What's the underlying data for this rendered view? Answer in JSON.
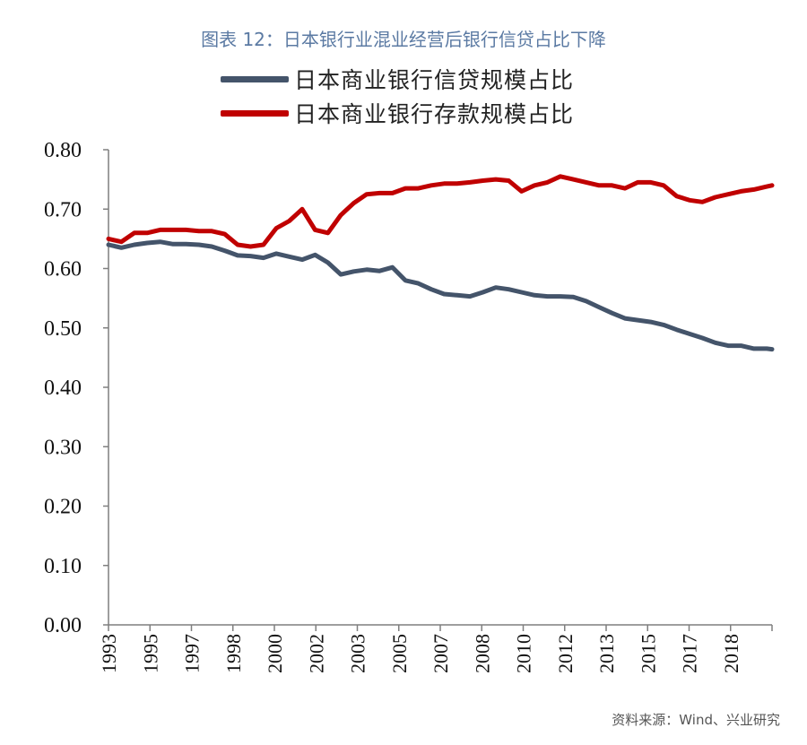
{
  "title": "图表 12：日本银行业混业经营后银行信贷占比下降",
  "source": "资料来源：Wind、兴业研究",
  "colors": {
    "credit": "#44546a",
    "deposit": "#c00000",
    "title": "#5b7aa3"
  },
  "chart_data": {
    "type": "line",
    "ylim": [
      0,
      0.8
    ],
    "yticks": [
      "0.80",
      "0.70",
      "0.60",
      "0.50",
      "0.40",
      "0.30",
      "0.20",
      "0.10",
      "0.00"
    ],
    "xticks": [
      "1993",
      "1995",
      "1997",
      "1998",
      "2000",
      "2002",
      "2003",
      "2005",
      "2007",
      "2008",
      "2010",
      "2012",
      "2013",
      "2015",
      "2017",
      "2018"
    ],
    "xrange": [
      1993.0,
      2018.7
    ],
    "grid": false,
    "legend": "top",
    "series": [
      {
        "name": "日本商业银行信贷规模占比",
        "color": "#44546a",
        "points": [
          [
            1993.0,
            0.64
          ],
          [
            1993.5,
            0.635
          ],
          [
            1994.0,
            0.64
          ],
          [
            1994.5,
            0.643
          ],
          [
            1995.0,
            0.645
          ],
          [
            1995.5,
            0.641
          ],
          [
            1996.0,
            0.641
          ],
          [
            1996.5,
            0.64
          ],
          [
            1997.0,
            0.637
          ],
          [
            1997.5,
            0.63
          ],
          [
            1998.0,
            0.622
          ],
          [
            1998.5,
            0.621
          ],
          [
            1999.0,
            0.618
          ],
          [
            1999.5,
            0.625
          ],
          [
            2000.0,
            0.62
          ],
          [
            2000.5,
            0.615
          ],
          [
            2001.0,
            0.623
          ],
          [
            2001.5,
            0.61
          ],
          [
            2002.0,
            0.59
          ],
          [
            2002.5,
            0.595
          ],
          [
            2003.0,
            0.598
          ],
          [
            2003.5,
            0.596
          ],
          [
            2004.0,
            0.602
          ],
          [
            2004.5,
            0.58
          ],
          [
            2005.0,
            0.575
          ],
          [
            2005.5,
            0.565
          ],
          [
            2006.0,
            0.557
          ],
          [
            2006.5,
            0.555
          ],
          [
            2007.0,
            0.553
          ],
          [
            2007.5,
            0.56
          ],
          [
            2008.0,
            0.568
          ],
          [
            2008.5,
            0.565
          ],
          [
            2009.0,
            0.56
          ],
          [
            2009.5,
            0.555
          ],
          [
            2010.0,
            0.553
          ],
          [
            2010.5,
            0.553
          ],
          [
            2011.0,
            0.552
          ],
          [
            2011.5,
            0.545
          ],
          [
            2012.0,
            0.535
          ],
          [
            2012.5,
            0.525
          ],
          [
            2013.0,
            0.516
          ],
          [
            2013.5,
            0.513
          ],
          [
            2014.0,
            0.51
          ],
          [
            2014.5,
            0.505
          ],
          [
            2015.0,
            0.497
          ],
          [
            2015.5,
            0.49
          ],
          [
            2016.0,
            0.483
          ],
          [
            2016.5,
            0.475
          ],
          [
            2017.0,
            0.47
          ],
          [
            2017.5,
            0.47
          ],
          [
            2018.0,
            0.465
          ],
          [
            2018.5,
            0.465
          ],
          [
            2018.7,
            0.464
          ]
        ]
      },
      {
        "name": "日本商业银行存款规模占比",
        "color": "#c00000",
        "points": [
          [
            1993.0,
            0.65
          ],
          [
            1993.5,
            0.645
          ],
          [
            1994.0,
            0.66
          ],
          [
            1994.5,
            0.66
          ],
          [
            1995.0,
            0.665
          ],
          [
            1995.5,
            0.665
          ],
          [
            1996.0,
            0.665
          ],
          [
            1996.5,
            0.663
          ],
          [
            1997.0,
            0.663
          ],
          [
            1997.5,
            0.658
          ],
          [
            1998.0,
            0.64
          ],
          [
            1998.5,
            0.637
          ],
          [
            1999.0,
            0.64
          ],
          [
            1999.5,
            0.668
          ],
          [
            2000.0,
            0.68
          ],
          [
            2000.5,
            0.7
          ],
          [
            2001.0,
            0.665
          ],
          [
            2001.5,
            0.66
          ],
          [
            2002.0,
            0.69
          ],
          [
            2002.5,
            0.71
          ],
          [
            2003.0,
            0.725
          ],
          [
            2003.5,
            0.727
          ],
          [
            2004.0,
            0.727
          ],
          [
            2004.5,
            0.735
          ],
          [
            2005.0,
            0.735
          ],
          [
            2005.5,
            0.74
          ],
          [
            2006.0,
            0.743
          ],
          [
            2006.5,
            0.743
          ],
          [
            2007.0,
            0.745
          ],
          [
            2007.5,
            0.748
          ],
          [
            2008.0,
            0.75
          ],
          [
            2008.5,
            0.748
          ],
          [
            2009.0,
            0.73
          ],
          [
            2009.5,
            0.74
          ],
          [
            2010.0,
            0.745
          ],
          [
            2010.5,
            0.755
          ],
          [
            2011.0,
            0.75
          ],
          [
            2011.5,
            0.745
          ],
          [
            2012.0,
            0.74
          ],
          [
            2012.5,
            0.74
          ],
          [
            2013.0,
            0.735
          ],
          [
            2013.5,
            0.745
          ],
          [
            2014.0,
            0.745
          ],
          [
            2014.5,
            0.74
          ],
          [
            2015.0,
            0.722
          ],
          [
            2015.5,
            0.715
          ],
          [
            2016.0,
            0.712
          ],
          [
            2016.5,
            0.72
          ],
          [
            2017.0,
            0.725
          ],
          [
            2017.5,
            0.73
          ],
          [
            2018.0,
            0.733
          ],
          [
            2018.5,
            0.738
          ],
          [
            2018.7,
            0.74
          ]
        ]
      }
    ]
  }
}
